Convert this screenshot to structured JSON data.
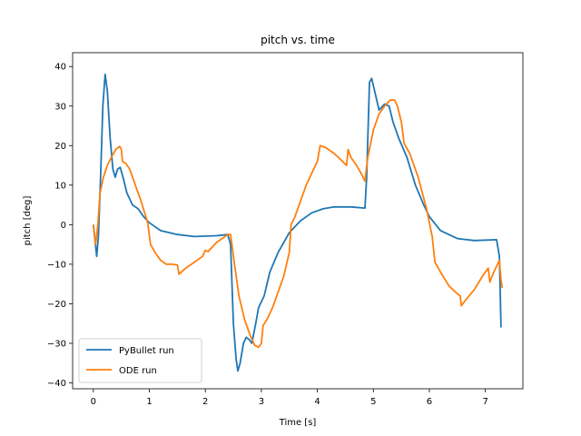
{
  "chart_data": {
    "type": "line",
    "title": "pitch vs. time",
    "xlabel": "Time [s]",
    "ylabel": "pitch [deg]",
    "xlim": [
      -0.37,
      7.67
    ],
    "ylim": [
      -41.5,
      43.5
    ],
    "xticks": [
      0,
      1,
      2,
      3,
      4,
      5,
      6,
      7
    ],
    "yticks": [
      -40,
      -30,
      -20,
      -10,
      0,
      10,
      20,
      30,
      40
    ],
    "grid": false,
    "legend": "lower left",
    "series": [
      {
        "name": "PyBullet run",
        "color": "#1f77b4",
        "points": [
          [
            0.0,
            0
          ],
          [
            0.03,
            -4
          ],
          [
            0.06,
            -8
          ],
          [
            0.09,
            -3
          ],
          [
            0.13,
            12
          ],
          [
            0.17,
            30
          ],
          [
            0.21,
            38
          ],
          [
            0.25,
            34
          ],
          [
            0.3,
            22
          ],
          [
            0.35,
            14
          ],
          [
            0.39,
            12
          ],
          [
            0.43,
            14
          ],
          [
            0.48,
            14.5
          ],
          [
            0.53,
            12
          ],
          [
            0.6,
            8
          ],
          [
            0.7,
            5
          ],
          [
            0.8,
            4
          ],
          [
            0.9,
            2
          ],
          [
            1.0,
            0.5
          ],
          [
            1.2,
            -1.5
          ],
          [
            1.5,
            -2.5
          ],
          [
            1.8,
            -3
          ],
          [
            2.2,
            -2.8
          ],
          [
            2.4,
            -2.5
          ],
          [
            2.45,
            -5
          ],
          [
            2.5,
            -25
          ],
          [
            2.55,
            -34
          ],
          [
            2.58,
            -37
          ],
          [
            2.62,
            -35
          ],
          [
            2.68,
            -30
          ],
          [
            2.73,
            -28.5
          ],
          [
            2.78,
            -29
          ],
          [
            2.83,
            -30
          ],
          [
            2.9,
            -25
          ],
          [
            2.95,
            -21
          ],
          [
            3.05,
            -18
          ],
          [
            3.15,
            -12
          ],
          [
            3.3,
            -7
          ],
          [
            3.5,
            -2
          ],
          [
            3.7,
            1
          ],
          [
            3.9,
            3
          ],
          [
            4.1,
            4
          ],
          [
            4.3,
            4.5
          ],
          [
            4.6,
            4.5
          ],
          [
            4.85,
            4.2
          ],
          [
            4.88,
            12
          ],
          [
            4.93,
            36
          ],
          [
            4.97,
            37
          ],
          [
            5.02,
            34
          ],
          [
            5.1,
            29
          ],
          [
            5.2,
            30.5
          ],
          [
            5.28,
            30
          ],
          [
            5.35,
            26
          ],
          [
            5.45,
            22
          ],
          [
            5.6,
            17
          ],
          [
            5.75,
            10
          ],
          [
            5.9,
            5
          ],
          [
            6.0,
            2
          ],
          [
            6.2,
            -1.5
          ],
          [
            6.5,
            -3.5
          ],
          [
            6.8,
            -4
          ],
          [
            7.2,
            -3.8
          ],
          [
            7.25,
            -8
          ],
          [
            7.28,
            -26
          ]
        ]
      },
      {
        "name": "ODE run",
        "color": "#ff7f0e",
        "points": [
          [
            0.0,
            0
          ],
          [
            0.04,
            -5
          ],
          [
            0.08,
            0
          ],
          [
            0.12,
            8
          ],
          [
            0.18,
            12
          ],
          [
            0.25,
            15
          ],
          [
            0.32,
            17
          ],
          [
            0.4,
            19
          ],
          [
            0.47,
            19.8
          ],
          [
            0.5,
            19
          ],
          [
            0.52,
            16
          ],
          [
            0.58,
            15.5
          ],
          [
            0.65,
            14
          ],
          [
            0.75,
            10
          ],
          [
            0.85,
            6
          ],
          [
            0.97,
            0.5
          ],
          [
            1.02,
            -5
          ],
          [
            1.1,
            -7
          ],
          [
            1.2,
            -9
          ],
          [
            1.3,
            -10
          ],
          [
            1.4,
            -10
          ],
          [
            1.5,
            -10.2
          ],
          [
            1.53,
            -12.5
          ],
          [
            1.65,
            -11
          ],
          [
            1.8,
            -9.5
          ],
          [
            1.95,
            -8
          ],
          [
            2.0,
            -6.5
          ],
          [
            2.05,
            -6.8
          ],
          [
            2.1,
            -6
          ],
          [
            2.2,
            -4.5
          ],
          [
            2.3,
            -3.5
          ],
          [
            2.4,
            -2.5
          ],
          [
            2.45,
            -2.5
          ],
          [
            2.52,
            -10
          ],
          [
            2.6,
            -18
          ],
          [
            2.7,
            -24
          ],
          [
            2.8,
            -28
          ],
          [
            2.88,
            -30.5
          ],
          [
            2.95,
            -31
          ],
          [
            3.0,
            -30
          ],
          [
            3.03,
            -25.5
          ],
          [
            3.1,
            -24
          ],
          [
            3.2,
            -21
          ],
          [
            3.3,
            -17
          ],
          [
            3.4,
            -13
          ],
          [
            3.5,
            -7
          ],
          [
            3.53,
            0
          ],
          [
            3.6,
            2
          ],
          [
            3.7,
            6
          ],
          [
            3.8,
            10
          ],
          [
            3.9,
            13
          ],
          [
            4.0,
            16
          ],
          [
            4.05,
            20
          ],
          [
            4.15,
            19.5
          ],
          [
            4.3,
            18
          ],
          [
            4.45,
            16
          ],
          [
            4.52,
            15
          ],
          [
            4.55,
            19
          ],
          [
            4.6,
            17
          ],
          [
            4.7,
            15
          ],
          [
            4.8,
            12.5
          ],
          [
            4.85,
            11
          ],
          [
            4.9,
            17
          ],
          [
            5.0,
            24
          ],
          [
            5.1,
            28
          ],
          [
            5.2,
            30
          ],
          [
            5.3,
            31.5
          ],
          [
            5.38,
            31.5
          ],
          [
            5.43,
            30
          ],
          [
            5.5,
            26
          ],
          [
            5.55,
            20.5
          ],
          [
            5.65,
            18
          ],
          [
            5.8,
            12
          ],
          [
            5.95,
            4
          ],
          [
            6.05,
            -3
          ],
          [
            6.1,
            -9.5
          ],
          [
            6.2,
            -12
          ],
          [
            6.35,
            -15.5
          ],
          [
            6.5,
            -17.5
          ],
          [
            6.55,
            -18
          ],
          [
            6.57,
            -20.5
          ],
          [
            6.65,
            -19
          ],
          [
            6.8,
            -16.5
          ],
          [
            6.95,
            -13
          ],
          [
            7.05,
            -11
          ],
          [
            7.08,
            -14.5
          ],
          [
            7.15,
            -12
          ],
          [
            7.25,
            -9
          ],
          [
            7.28,
            -14
          ],
          [
            7.3,
            -16
          ]
        ]
      }
    ]
  }
}
